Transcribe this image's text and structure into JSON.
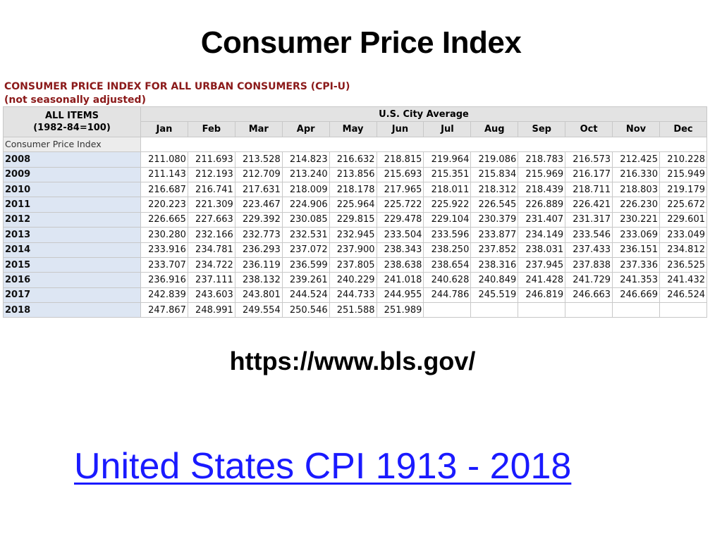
{
  "slide": {
    "title": "Consumer Price Index",
    "source_url": "https://www.bls.gov/",
    "link_text": "United States CPI 1913 - 2018"
  },
  "table": {
    "heading_line1": "CONSUMER PRICE INDEX FOR ALL URBAN CONSUMERS (CPI-U)",
    "heading_line2": "(not seasonally adjusted)",
    "all_items_line1": "ALL ITEMS",
    "all_items_line2": "(1982-84=100)",
    "group_header": "U.S. City Average",
    "row_label": "Consumer Price Index",
    "months": [
      "Jan",
      "Feb",
      "Mar",
      "Apr",
      "May",
      "Jun",
      "Jul",
      "Aug",
      "Sep",
      "Oct",
      "Nov",
      "Dec"
    ],
    "rows": [
      {
        "year": "2008",
        "values": [
          "211.080",
          "211.693",
          "213.528",
          "214.823",
          "216.632",
          "218.815",
          "219.964",
          "219.086",
          "218.783",
          "216.573",
          "212.425",
          "210.228"
        ]
      },
      {
        "year": "2009",
        "values": [
          "211.143",
          "212.193",
          "212.709",
          "213.240",
          "213.856",
          "215.693",
          "215.351",
          "215.834",
          "215.969",
          "216.177",
          "216.330",
          "215.949"
        ]
      },
      {
        "year": "2010",
        "values": [
          "216.687",
          "216.741",
          "217.631",
          "218.009",
          "218.178",
          "217.965",
          "218.011",
          "218.312",
          "218.439",
          "218.711",
          "218.803",
          "219.179"
        ]
      },
      {
        "year": "2011",
        "values": [
          "220.223",
          "221.309",
          "223.467",
          "224.906",
          "225.964",
          "225.722",
          "225.922",
          "226.545",
          "226.889",
          "226.421",
          "226.230",
          "225.672"
        ]
      },
      {
        "year": "2012",
        "values": [
          "226.665",
          "227.663",
          "229.392",
          "230.085",
          "229.815",
          "229.478",
          "229.104",
          "230.379",
          "231.407",
          "231.317",
          "230.221",
          "229.601"
        ]
      },
      {
        "year": "2013",
        "values": [
          "230.280",
          "232.166",
          "232.773",
          "232.531",
          "232.945",
          "233.504",
          "233.596",
          "233.877",
          "234.149",
          "233.546",
          "233.069",
          "233.049"
        ]
      },
      {
        "year": "2014",
        "values": [
          "233.916",
          "234.781",
          "236.293",
          "237.072",
          "237.900",
          "238.343",
          "238.250",
          "237.852",
          "238.031",
          "237.433",
          "236.151",
          "234.812"
        ]
      },
      {
        "year": "2015",
        "values": [
          "233.707",
          "234.722",
          "236.119",
          "236.599",
          "237.805",
          "238.638",
          "238.654",
          "238.316",
          "237.945",
          "237.838",
          "237.336",
          "236.525"
        ]
      },
      {
        "year": "2016",
        "values": [
          "236.916",
          "237.111",
          "238.132",
          "239.261",
          "240.229",
          "241.018",
          "240.628",
          "240.849",
          "241.428",
          "241.729",
          "241.353",
          "241.432"
        ]
      },
      {
        "year": "2017",
        "values": [
          "242.839",
          "243.603",
          "243.801",
          "244.524",
          "244.733",
          "244.955",
          "244.786",
          "245.519",
          "246.819",
          "246.663",
          "246.669",
          "246.524"
        ]
      },
      {
        "year": "2018",
        "values": [
          "247.867",
          "248.991",
          "249.554",
          "250.546",
          "251.588",
          "251.989",
          "",
          "",
          "",
          "",
          "",
          ""
        ]
      }
    ]
  }
}
